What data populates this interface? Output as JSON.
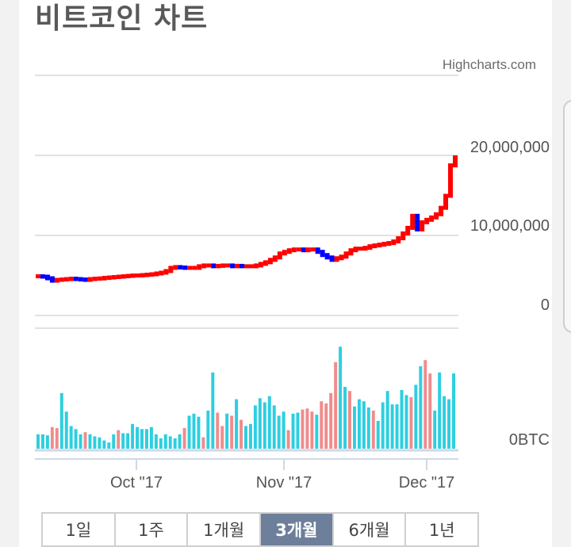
{
  "title": "비트코인 차트",
  "credit": "Highcharts.com",
  "colors": {
    "up": "#ff0000",
    "down": "#0000ff",
    "vol_up": "#f08c8c",
    "vol_down": "#2ccfe0",
    "grid": "#d9d9d9"
  },
  "range_buttons": [
    {
      "label": "1일",
      "active": false
    },
    {
      "label": "1주",
      "active": false
    },
    {
      "label": "1개월",
      "active": false
    },
    {
      "label": "3개월",
      "active": true
    },
    {
      "label": "6개월",
      "active": false
    },
    {
      "label": "1년",
      "active": false
    }
  ],
  "chart_data": [
    {
      "type": "line",
      "title": "",
      "subtitle": "",
      "xlabel": "",
      "ylabel": "",
      "y_tick_labels": [
        "20,000,000",
        "10,000,000",
        "0"
      ],
      "ylim": [
        0,
        20000000
      ],
      "x_tick_labels": [
        "Oct \"17",
        "Nov \"17",
        "Dec \"17"
      ],
      "x_range": [
        "2017-09-11",
        "2017-12-08"
      ],
      "grid": true,
      "legend": "none",
      "series": [
        {
          "points": [
            [
              "2017-09-11",
              4950000
            ],
            [
              "2017-09-12",
              4900000
            ],
            [
              "2017-09-13",
              4700000
            ],
            [
              "2017-09-14",
              4400000
            ],
            [
              "2017-09-15",
              4500000
            ],
            [
              "2017-09-16",
              4550000
            ],
            [
              "2017-09-17",
              4600000
            ],
            [
              "2017-09-18",
              4650000
            ],
            [
              "2017-09-19",
              4600000
            ],
            [
              "2017-09-20",
              4550000
            ],
            [
              "2017-09-21",
              4500000
            ],
            [
              "2017-09-22",
              4600000
            ],
            [
              "2017-09-23",
              4650000
            ],
            [
              "2017-09-24",
              4680000
            ],
            [
              "2017-09-25",
              4750000
            ],
            [
              "2017-09-26",
              4800000
            ],
            [
              "2017-09-27",
              4850000
            ],
            [
              "2017-09-28",
              4900000
            ],
            [
              "2017-09-29",
              4950000
            ],
            [
              "2017-09-30",
              5000000
            ],
            [
              "2017-10-01",
              5050000
            ],
            [
              "2017-10-02",
              5050000
            ],
            [
              "2017-10-03",
              5100000
            ],
            [
              "2017-10-04",
              5150000
            ],
            [
              "2017-10-05",
              5200000
            ],
            [
              "2017-10-06",
              5300000
            ],
            [
              "2017-10-07",
              5400000
            ],
            [
              "2017-10-08",
              5600000
            ],
            [
              "2017-10-09",
              6000000
            ],
            [
              "2017-10-10",
              6100000
            ],
            [
              "2017-10-11",
              6050000
            ],
            [
              "2017-10-12",
              6000000
            ],
            [
              "2017-10-13",
              6000000
            ],
            [
              "2017-10-14",
              6000000
            ],
            [
              "2017-10-15",
              6200000
            ],
            [
              "2017-10-16",
              6300000
            ],
            [
              "2017-10-17",
              6300000
            ],
            [
              "2017-10-18",
              6200000
            ],
            [
              "2017-10-19",
              6250000
            ],
            [
              "2017-10-20",
              6300000
            ],
            [
              "2017-10-21",
              6300000
            ],
            [
              "2017-10-22",
              6200000
            ],
            [
              "2017-10-23",
              6250000
            ],
            [
              "2017-10-24",
              6200000
            ],
            [
              "2017-10-25",
              6200000
            ],
            [
              "2017-10-26",
              6200000
            ],
            [
              "2017-10-27",
              6300000
            ],
            [
              "2017-10-28",
              6500000
            ],
            [
              "2017-10-29",
              6700000
            ],
            [
              "2017-10-30",
              7000000
            ],
            [
              "2017-10-31",
              7300000
            ],
            [
              "2017-11-01",
              7800000
            ],
            [
              "2017-11-02",
              8000000
            ],
            [
              "2017-11-03",
              8200000
            ],
            [
              "2017-11-04",
              8300000
            ],
            [
              "2017-11-05",
              8300000
            ],
            [
              "2017-11-06",
              8200000
            ],
            [
              "2017-11-07",
              8300000
            ],
            [
              "2017-11-08",
              8300000
            ],
            [
              "2017-11-09",
              8000000
            ],
            [
              "2017-11-10",
              7600000
            ],
            [
              "2017-11-11",
              7300000
            ],
            [
              "2017-11-12",
              7000000
            ],
            [
              "2017-11-13",
              7200000
            ],
            [
              "2017-11-14",
              7400000
            ],
            [
              "2017-11-15",
              7800000
            ],
            [
              "2017-11-16",
              8200000
            ],
            [
              "2017-11-17",
              8400000
            ],
            [
              "2017-11-18",
              8400000
            ],
            [
              "2017-11-19",
              8500000
            ],
            [
              "2017-11-20",
              8700000
            ],
            [
              "2017-11-21",
              8800000
            ],
            [
              "2017-11-22",
              8900000
            ],
            [
              "2017-11-23",
              9000000
            ],
            [
              "2017-11-24",
              9100000
            ],
            [
              "2017-11-25",
              9300000
            ],
            [
              "2017-11-26",
              9700000
            ],
            [
              "2017-11-27",
              10300000
            ],
            [
              "2017-11-28",
              11000000
            ],
            [
              "2017-11-29",
              12500000
            ],
            [
              "2017-11-30",
              10800000
            ],
            [
              "2017-12-01",
              11700000
            ],
            [
              "2017-12-02",
              12000000
            ],
            [
              "2017-12-03",
              12300000
            ],
            [
              "2017-12-04",
              12700000
            ],
            [
              "2017-12-05",
              13500000
            ],
            [
              "2017-12-06",
              15000000
            ],
            [
              "2017-12-07",
              18800000
            ],
            [
              "2017-12-08",
              19800000
            ]
          ]
        }
      ]
    },
    {
      "type": "bar",
      "title": "",
      "y_tick_labels": [
        "0BTC"
      ],
      "ylim": [
        0,
        100
      ],
      "series": [
        {
          "up": [
            false,
            false,
            false,
            true,
            true,
            false,
            false,
            false,
            false,
            false,
            true,
            false,
            false,
            false,
            false,
            false,
            false,
            true,
            false,
            false,
            false,
            false,
            false,
            false,
            false,
            false,
            false,
            false,
            false,
            false,
            false,
            true,
            false,
            false,
            false,
            true,
            false,
            false,
            true,
            true,
            false,
            true,
            false,
            true,
            false,
            false,
            false,
            false,
            false,
            false,
            false,
            false,
            false,
            true,
            false,
            false,
            true,
            true,
            true,
            false,
            true,
            true,
            true,
            true,
            false,
            false,
            true,
            false,
            false,
            false,
            false,
            true,
            false,
            false,
            false,
            false,
            false,
            false,
            false,
            true,
            false,
            false,
            true,
            true,
            false,
            false,
            false,
            false,
            false
          ],
          "values": [
            14,
            14,
            13,
            21,
            20,
            54,
            36,
            22,
            19,
            14,
            16,
            14,
            12,
            11,
            8,
            6,
            14,
            18,
            15,
            15,
            24,
            21,
            19,
            19,
            21,
            14,
            10,
            14,
            12,
            10,
            14,
            20,
            32,
            34,
            31,
            11,
            37,
            74,
            35,
            22,
            34,
            32,
            48,
            28,
            22,
            24,
            42,
            49,
            45,
            51,
            42,
            32,
            36,
            18,
            34,
            35,
            38,
            39,
            36,
            33,
            46,
            44,
            54,
            84,
            99,
            60,
            56,
            41,
            48,
            46,
            40,
            37,
            27,
            45,
            56,
            43,
            43,
            57,
            52,
            50,
            62,
            80,
            86,
            73,
            37,
            74,
            51,
            48,
            73
          ]
        }
      ]
    }
  ]
}
